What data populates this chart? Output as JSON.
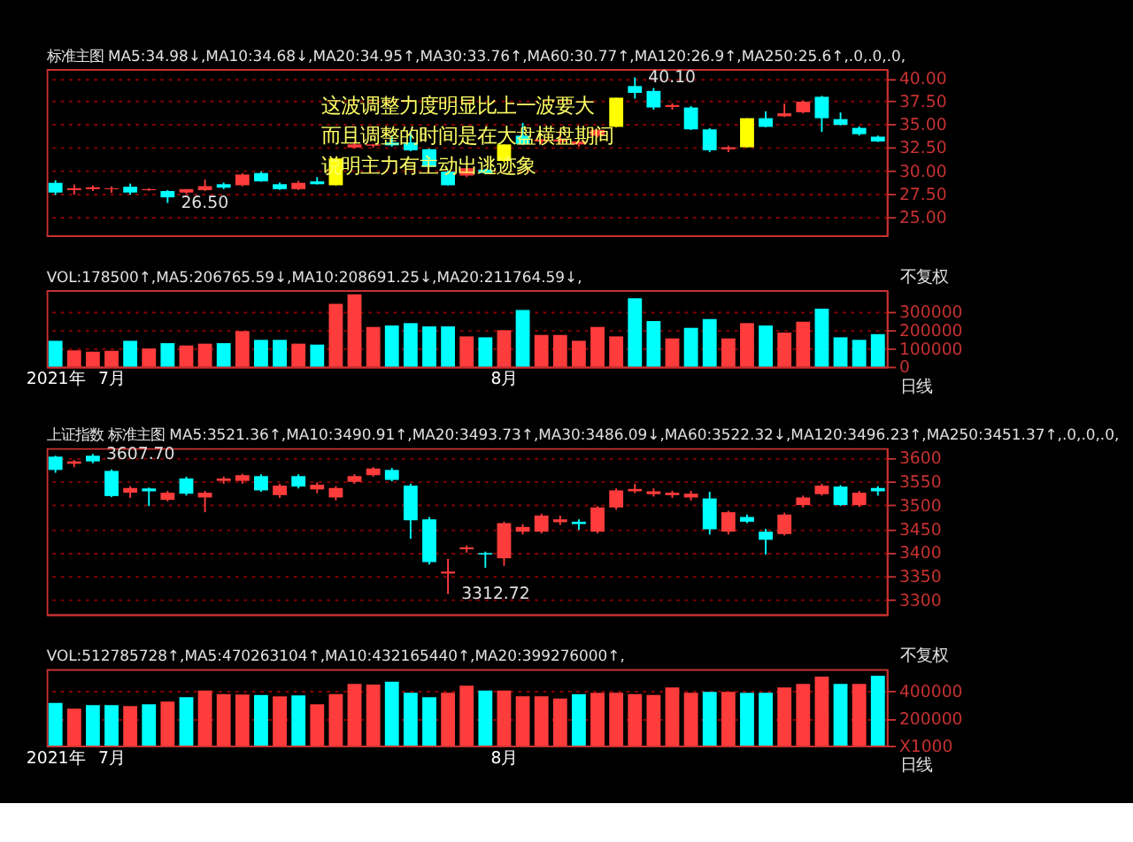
{
  "chart_data": [
    {
      "type": "candlestick",
      "title": "标准主图 MA5:34.98↓,MA10:34.68↓,MA20:34.95↑,MA30:33.76↑,MA60:30.77↑,MA120:26.9↑,MA250:25.6↑,.0,.0,.0,",
      "categories": [
        null,
        null,
        null,
        null,
        null,
        null,
        null,
        null,
        null,
        null,
        null,
        null,
        null,
        null,
        null,
        null,
        null,
        null,
        null,
        null,
        null,
        null,
        null,
        null,
        null,
        null,
        null,
        null,
        null,
        null,
        null,
        null,
        null,
        null,
        null,
        null,
        null,
        null,
        null,
        null,
        null,
        null,
        null,
        null,
        null
      ],
      "ohlc": [
        [
          28.68,
          28.95,
          27.37,
          27.63
        ],
        [
          27.9,
          28.5,
          27.4,
          28.1
        ],
        [
          28.0,
          28.4,
          27.8,
          28.2
        ],
        [
          28.0,
          28.3,
          27.6,
          28.1
        ],
        [
          28.26,
          28.6,
          27.4,
          27.63
        ],
        [
          27.89,
          28.1,
          27.8,
          28.0
        ],
        [
          27.79,
          27.9,
          26.5,
          27.11
        ],
        [
          27.63,
          28.0,
          27.5,
          28.0
        ],
        [
          27.89,
          29.05,
          27.8,
          28.32
        ],
        [
          28.53,
          28.7,
          28.0,
          28.16
        ],
        [
          28.42,
          29.7,
          28.3,
          29.58
        ],
        [
          29.74,
          29.9,
          28.8,
          28.84
        ],
        [
          28.53,
          28.7,
          27.9,
          28.0
        ],
        [
          28.0,
          28.9,
          27.9,
          28.68
        ],
        [
          28.84,
          29.3,
          28.5,
          28.53
        ],
        [
          28.42,
          31.32,
          28.4,
          31.32
        ],
        [
          32.5,
          33.16,
          32.4,
          32.84
        ],
        [
          32.7,
          32.9,
          32.5,
          32.84
        ],
        [
          33.05,
          33.68,
          32.6,
          32.74
        ],
        [
          33.05,
          34.3,
          32.1,
          32.21
        ],
        [
          32.32,
          32.4,
          30.4,
          30.42
        ],
        [
          29.89,
          30.0,
          28.4,
          28.42
        ],
        [
          29.47,
          30.3,
          29.3,
          30.26
        ],
        [
          30.11,
          30.2,
          29.6,
          29.74
        ],
        [
          31.05,
          32.84,
          30.9,
          32.84
        ],
        [
          33.79,
          35.16,
          32.8,
          32.89
        ],
        [
          33.16,
          33.45,
          32.9,
          33.37
        ],
        [
          33.16,
          34.37,
          32.9,
          33.37
        ],
        [
          32.84,
          33.2,
          32.6,
          33.16
        ],
        [
          33.79,
          34.42,
          33.6,
          34.42
        ],
        [
          34.74,
          37.9,
          34.7,
          37.9
        ],
        [
          39.16,
          40.1,
          37.8,
          38.42
        ],
        [
          38.63,
          38.95,
          36.6,
          36.84
        ],
        [
          36.9,
          37.3,
          36.6,
          37.1
        ],
        [
          36.84,
          37.0,
          34.4,
          34.47
        ],
        [
          34.47,
          34.6,
          32.0,
          32.21
        ],
        [
          32.32,
          32.7,
          32.0,
          32.53
        ],
        [
          32.53,
          35.68,
          32.5,
          35.68
        ],
        [
          35.68,
          36.42,
          34.7,
          34.74
        ],
        [
          35.89,
          37.26,
          35.8,
          36.21
        ],
        [
          36.32,
          37.6,
          36.2,
          37.47
        ],
        [
          38.0,
          38.1,
          34.2,
          35.68
        ],
        [
          35.58,
          36.3,
          34.9,
          34.95
        ],
        [
          34.63,
          34.8,
          33.8,
          33.95
        ],
        [
          33.68,
          33.8,
          33.1,
          33.16
        ]
      ],
      "colors": [
        "#00ffff",
        "#ff3c3c",
        "#ff3c3c",
        "#ff3c3c",
        "#00ffff",
        "#ff3c3c",
        "#00ffff",
        "#ff3c3c",
        "#ff3c3c",
        "#00ffff",
        "#ff3c3c",
        "#00ffff",
        "#00ffff",
        "#ff3c3c",
        "#00ffff",
        "#ffff00",
        "#ff3c3c",
        "#ff3c3c",
        "#00ffff",
        "#00ffff",
        "#00ffff",
        "#00ffff",
        "#ff3c3c",
        "#00ffff",
        "#ffff00",
        "#00ffff",
        "#ff3c3c",
        "#ff3c3c",
        "#ff3c3c",
        "#ff3c3c",
        "#ffff00",
        "#00ffff",
        "#00ffff",
        "#ff3c3c",
        "#00ffff",
        "#00ffff",
        "#ff3c3c",
        "#ffff00",
        "#00ffff",
        "#ff3c3c",
        "#ff3c3c",
        "#00ffff",
        "#00ffff",
        "#00ffff",
        "#00ffff"
      ],
      "ylim": [
        23,
        41
      ],
      "yticks": [
        {
          "value": 25,
          "label": "25.00"
        },
        {
          "value": 27.5,
          "label": "27.50"
        },
        {
          "value": 30,
          "label": "30.00"
        },
        {
          "value": 32.5,
          "label": "32.50"
        },
        {
          "value": 35,
          "label": "35.00"
        },
        {
          "value": 37.5,
          "label": "37.50"
        },
        {
          "value": 40,
          "label": "40.00"
        }
      ],
      "grid": "y",
      "legend": false,
      "tick_labels": "y",
      "annotations": [
        "这波调整力度明显比上一波要大",
        "而且调整的时间是在大盘横盘期间",
        "说明主力有主动出逃迹象",
        "40.10",
        "26.50"
      ]
    },
    {
      "type": "bar",
      "title": "VOL:178500↑,MA5:206765.59↓,MA10:208691.25↓,MA20:211764.59↓,",
      "categories": [
        "2021年",
        null,
        null,
        "7月",
        null,
        null,
        null,
        null,
        null,
        null,
        null,
        null,
        null,
        null,
        null,
        null,
        null,
        null,
        null,
        null,
        null,
        null,
        null,
        null,
        "8月",
        null,
        null,
        null,
        null,
        null,
        null,
        null,
        null,
        null,
        null,
        null,
        null,
        null,
        null,
        null,
        null,
        null,
        null,
        null,
        null
      ],
      "values": [
        142000,
        89000,
        82000,
        87000,
        142000,
        100000,
        129000,
        116000,
        126000,
        129000,
        195000,
        147000,
        147000,
        126000,
        121000,
        345000,
        397000,
        218000,
        226000,
        239000,
        221000,
        221000,
        166000,
        161000,
        200000,
        311000,
        174000,
        174000,
        142000,
        218000,
        166000,
        376000,
        250000,
        155000,
        213000,
        261000,
        155000,
        239000,
        226000,
        187000,
        247000,
        318000,
        161000,
        147000,
        178500
      ],
      "colors": [
        "#00ffff",
        "#ff3c3c",
        "#ff3c3c",
        "#ff3c3c",
        "#00ffff",
        "#ff3c3c",
        "#00ffff",
        "#ff3c3c",
        "#ff3c3c",
        "#00ffff",
        "#ff3c3c",
        "#00ffff",
        "#00ffff",
        "#ff3c3c",
        "#00ffff",
        "#ff3c3c",
        "#ff3c3c",
        "#ff3c3c",
        "#00ffff",
        "#00ffff",
        "#00ffff",
        "#00ffff",
        "#ff3c3c",
        "#00ffff",
        "#ff3c3c",
        "#00ffff",
        "#ff3c3c",
        "#ff3c3c",
        "#ff3c3c",
        "#ff3c3c",
        "#ff3c3c",
        "#00ffff",
        "#00ffff",
        "#ff3c3c",
        "#00ffff",
        "#00ffff",
        "#ff3c3c",
        "#ff3c3c",
        "#00ffff",
        "#ff3c3c",
        "#ff3c3c",
        "#00ffff",
        "#00ffff",
        "#00ffff",
        "#00ffff"
      ],
      "ylim": [
        0,
        420000
      ],
      "yticks": [
        0,
        100000,
        200000,
        300000
      ],
      "grid": "y",
      "legend": false,
      "annotations": [
        "不复权",
        "日线"
      ]
    },
    {
      "type": "candlestick",
      "title": "上证指数 标准主图 MA5:3521.36↑,MA10:3490.91↑,MA20:3493.73↑,MA30:3486.09↓,MA60:3522.32↓,MA120:3496.23↑,MA250:3451.37↑,.0,.0,.0,",
      "categories": [
        null,
        null,
        null,
        null,
        null,
        null,
        null,
        null,
        null,
        null,
        null,
        null,
        null,
        null,
        null,
        null,
        null,
        null,
        null,
        null,
        null,
        null,
        null,
        null,
        null,
        null,
        null,
        null,
        null,
        null,
        null,
        null,
        null,
        null,
        null,
        null,
        null,
        null,
        null,
        null,
        null,
        null,
        null,
        null,
        null
      ],
      "ohlc": [
        [
          3602,
          3604,
          3568,
          3574
        ],
        [
          3587,
          3595,
          3580,
          3592
        ],
        [
          3604,
          3607.7,
          3588,
          3592
        ],
        [
          3572,
          3575,
          3517,
          3519
        ],
        [
          3526,
          3540,
          3515,
          3536
        ],
        [
          3535,
          3537,
          3498,
          3529
        ],
        [
          3511,
          3530,
          3508,
          3526
        ],
        [
          3556,
          3560,
          3520,
          3524
        ],
        [
          3516,
          3530,
          3485,
          3526
        ],
        [
          3551,
          3560,
          3545,
          3556
        ],
        [
          3551,
          3566,
          3545,
          3563
        ],
        [
          3561,
          3565,
          3528,
          3531
        ],
        [
          3521,
          3545,
          3515,
          3541
        ],
        [
          3561,
          3565,
          3535,
          3539
        ],
        [
          3533,
          3548,
          3525,
          3543
        ],
        [
          3516,
          3540,
          3510,
          3536
        ],
        [
          3549,
          3565,
          3545,
          3561
        ],
        [
          3563,
          3580,
          3560,
          3577
        ],
        [
          3574,
          3578,
          3550,
          3553
        ],
        [
          3541,
          3545,
          3429,
          3468
        ],
        [
          3470,
          3475,
          3375,
          3380
        ],
        [
          3356,
          3387,
          3312.72,
          3360
        ],
        [
          3407,
          3415,
          3400,
          3411
        ],
        [
          3399,
          3402,
          3368,
          3396
        ],
        [
          3388,
          3465,
          3372,
          3462
        ],
        [
          3444,
          3460,
          3438,
          3454
        ],
        [
          3444,
          3482,
          3440,
          3478
        ],
        [
          3464,
          3478,
          3458,
          3470
        ],
        [
          3465,
          3470,
          3448,
          3460
        ],
        [
          3444,
          3498,
          3440,
          3495
        ],
        [
          3495,
          3535,
          3490,
          3531
        ],
        [
          3529,
          3545,
          3525,
          3534
        ],
        [
          3523,
          3535,
          3518,
          3529
        ],
        [
          3521,
          3530,
          3515,
          3526
        ],
        [
          3516,
          3530,
          3510,
          3524
        ],
        [
          3514,
          3528,
          3438,
          3449
        ],
        [
          3444,
          3488,
          3438,
          3485
        ],
        [
          3475,
          3480,
          3462,
          3465
        ],
        [
          3444,
          3450,
          3396,
          3427
        ],
        [
          3439,
          3484,
          3436,
          3480
        ],
        [
          3500,
          3520,
          3495,
          3516
        ],
        [
          3523,
          3545,
          3520,
          3541
        ],
        [
          3539,
          3542,
          3498,
          3500
        ],
        [
          3500,
          3530,
          3496,
          3526
        ],
        [
          3536,
          3540,
          3520,
          3529
        ]
      ],
      "colors": [
        "#00ffff",
        "#ff3c3c",
        "#00ffff",
        "#00ffff",
        "#ff3c3c",
        "#00ffff",
        "#ff3c3c",
        "#00ffff",
        "#ff3c3c",
        "#ff3c3c",
        "#ff3c3c",
        "#00ffff",
        "#ff3c3c",
        "#00ffff",
        "#ff3c3c",
        "#ff3c3c",
        "#ff3c3c",
        "#ff3c3c",
        "#00ffff",
        "#00ffff",
        "#00ffff",
        "#ff3c3c",
        "#ff3c3c",
        "#00ffff",
        "#ff3c3c",
        "#ff3c3c",
        "#ff3c3c",
        "#ff3c3c",
        "#00ffff",
        "#ff3c3c",
        "#ff3c3c",
        "#ff3c3c",
        "#ff3c3c",
        "#ff3c3c",
        "#ff3c3c",
        "#00ffff",
        "#ff3c3c",
        "#00ffff",
        "#00ffff",
        "#ff3c3c",
        "#ff3c3c",
        "#ff3c3c",
        "#00ffff",
        "#ff3c3c",
        "#00ffff"
      ],
      "ylim": [
        3270,
        3620
      ],
      "yticks": [
        3300,
        3350,
        3400,
        3450,
        3500,
        3550,
        3600
      ],
      "grid": "y",
      "legend": false,
      "tick_labels": "y",
      "annotations": [
        "3607.70",
        "3312.72"
      ]
    },
    {
      "type": "bar",
      "title": "VOL:512785728↑,MA5:470263104↑,MA10:432165440↑,MA20:399276000↑,",
      "categories": [
        "2021年",
        null,
        null,
        "7月",
        null,
        null,
        null,
        null,
        null,
        null,
        null,
        null,
        null,
        null,
        null,
        null,
        null,
        null,
        null,
        null,
        null,
        null,
        null,
        null,
        "8月",
        null,
        null,
        null,
        null,
        null,
        null,
        null,
        null,
        null,
        null,
        null,
        null,
        null,
        null,
        null,
        null,
        null,
        null,
        null,
        null
      ],
      "values": [
        313000,
        271000,
        297000,
        297000,
        290000,
        303000,
        323000,
        355000,
        403000,
        377000,
        374000,
        371000,
        361000,
        368000,
        303000,
        377000,
        452000,
        448000,
        468000,
        387000,
        355000,
        387000,
        439000,
        403000,
        403000,
        361000,
        361000,
        345000,
        377000,
        387000,
        387000,
        377000,
        371000,
        426000,
        387000,
        394000,
        394000,
        387000,
        387000,
        426000,
        452000,
        506000,
        452000,
        452000,
        512786
      ],
      "colors": [
        "#00ffff",
        "#ff3c3c",
        "#00ffff",
        "#00ffff",
        "#ff3c3c",
        "#00ffff",
        "#ff3c3c",
        "#00ffff",
        "#ff3c3c",
        "#ff3c3c",
        "#ff3c3c",
        "#00ffff",
        "#ff3c3c",
        "#00ffff",
        "#ff3c3c",
        "#ff3c3c",
        "#ff3c3c",
        "#ff3c3c",
        "#00ffff",
        "#00ffff",
        "#00ffff",
        "#ff3c3c",
        "#ff3c3c",
        "#00ffff",
        "#ff3c3c",
        "#ff3c3c",
        "#ff3c3c",
        "#ff3c3c",
        "#00ffff",
        "#ff3c3c",
        "#ff3c3c",
        "#ff3c3c",
        "#ff3c3c",
        "#ff3c3c",
        "#ff3c3c",
        "#00ffff",
        "#ff3c3c",
        "#00ffff",
        "#00ffff",
        "#ff3c3c",
        "#ff3c3c",
        "#ff3c3c",
        "#00ffff",
        "#ff3c3c",
        "#00ffff"
      ],
      "ylim": [
        0,
        560000
      ],
      "yticks": [
        {
          "value": 0,
          "label": "X1000"
        },
        200000,
        400000
      ],
      "grid": "y",
      "legend": false,
      "annotations": [
        "不复权",
        "日线"
      ]
    }
  ]
}
